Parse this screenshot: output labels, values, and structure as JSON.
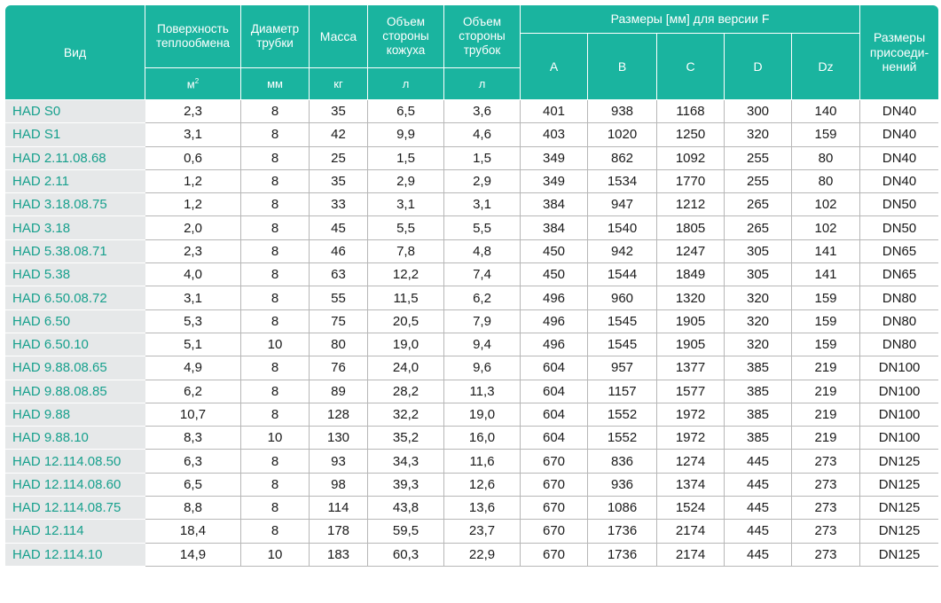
{
  "headers": {
    "vid": "Вид",
    "surface": "Поверхность теплообмена",
    "diameter": "Диаметр трубки",
    "mass": "Масса",
    "shell_volume": "Объем стороны кожуха",
    "tube_volume": "Объем стороны трубок",
    "dims_group": "Размеры [мм] для версии F",
    "A": "A",
    "B": "B",
    "C": "C",
    "D": "D",
    "Dz": "Dz",
    "connection": "Размеры присоеди-нений"
  },
  "units": {
    "surface": "м",
    "surface_exp": "2",
    "diameter": "мм",
    "mass": "кг",
    "shell_volume": "л",
    "tube_volume": "л"
  },
  "rows": [
    [
      "HAD S0",
      "2,3",
      "8",
      "35",
      "6,5",
      "3,6",
      "401",
      "938",
      "1168",
      "300",
      "140",
      "DN40"
    ],
    [
      "HAD S1",
      "3,1",
      "8",
      "42",
      "9,9",
      "4,6",
      "403",
      "1020",
      "1250",
      "320",
      "159",
      "DN40"
    ],
    [
      "HAD 2.11.08.68",
      "0,6",
      "8",
      "25",
      "1,5",
      "1,5",
      "349",
      "862",
      "1092",
      "255",
      "80",
      "DN40"
    ],
    [
      "HAD 2.11",
      "1,2",
      "8",
      "35",
      "2,9",
      "2,9",
      "349",
      "1534",
      "1770",
      "255",
      "80",
      "DN40"
    ],
    [
      "HAD 3.18.08.75",
      "1,2",
      "8",
      "33",
      "3,1",
      "3,1",
      "384",
      "947",
      "1212",
      "265",
      "102",
      "DN50"
    ],
    [
      "HAD 3.18",
      "2,0",
      "8",
      "45",
      "5,5",
      "5,5",
      "384",
      "1540",
      "1805",
      "265",
      "102",
      "DN50"
    ],
    [
      "HAD 5.38.08.71",
      "2,3",
      "8",
      "46",
      "7,8",
      "4,8",
      "450",
      "942",
      "1247",
      "305",
      "141",
      "DN65"
    ],
    [
      "HAD 5.38",
      "4,0",
      "8",
      "63",
      "12,2",
      "7,4",
      "450",
      "1544",
      "1849",
      "305",
      "141",
      "DN65"
    ],
    [
      "HAD 6.50.08.72",
      "3,1",
      "8",
      "55",
      "11,5",
      "6,2",
      "496",
      "960",
      "1320",
      "320",
      "159",
      "DN80"
    ],
    [
      "HAD 6.50",
      "5,3",
      "8",
      "75",
      "20,5",
      "7,9",
      "496",
      "1545",
      "1905",
      "320",
      "159",
      "DN80"
    ],
    [
      "HAD 6.50.10",
      "5,1",
      "10",
      "80",
      "19,0",
      "9,4",
      "496",
      "1545",
      "1905",
      "320",
      "159",
      "DN80"
    ],
    [
      "HAD 9.88.08.65",
      "4,9",
      "8",
      "76",
      "24,0",
      "9,6",
      "604",
      "957",
      "1377",
      "385",
      "219",
      "DN100"
    ],
    [
      "HAD 9.88.08.85",
      "6,2",
      "8",
      "89",
      "28,2",
      "11,3",
      "604",
      "1157",
      "1577",
      "385",
      "219",
      "DN100"
    ],
    [
      "HAD 9.88",
      "10,7",
      "8",
      "128",
      "32,2",
      "19,0",
      "604",
      "1552",
      "1972",
      "385",
      "219",
      "DN100"
    ],
    [
      "HAD 9.88.10",
      "8,3",
      "10",
      "130",
      "35,2",
      "16,0",
      "604",
      "1552",
      "1972",
      "385",
      "219",
      "DN100"
    ],
    [
      "HAD 12.114.08.50",
      "6,3",
      "8",
      "93",
      "34,3",
      "11,6",
      "670",
      "836",
      "1274",
      "445",
      "273",
      "DN125"
    ],
    [
      "HAD 12.114.08.60",
      "6,5",
      "8",
      "98",
      "39,3",
      "12,6",
      "670",
      "936",
      "1374",
      "445",
      "273",
      "DN125"
    ],
    [
      "HAD 12.114.08.75",
      "8,8",
      "8",
      "114",
      "43,8",
      "13,6",
      "670",
      "1086",
      "1524",
      "445",
      "273",
      "DN125"
    ],
    [
      "HAD 12.114",
      "18,4",
      "8",
      "178",
      "59,5",
      "23,7",
      "670",
      "1736",
      "2174",
      "445",
      "273",
      "DN125"
    ],
    [
      "HAD 12.114.10",
      "14,9",
      "10",
      "183",
      "60,3",
      "22,9",
      "670",
      "1736",
      "2174",
      "445",
      "273",
      "DN125"
    ]
  ],
  "colors": {
    "header_bg": "#1ab49f",
    "name_text": "#17a08d",
    "name_bg": "#e6e8e9"
  }
}
